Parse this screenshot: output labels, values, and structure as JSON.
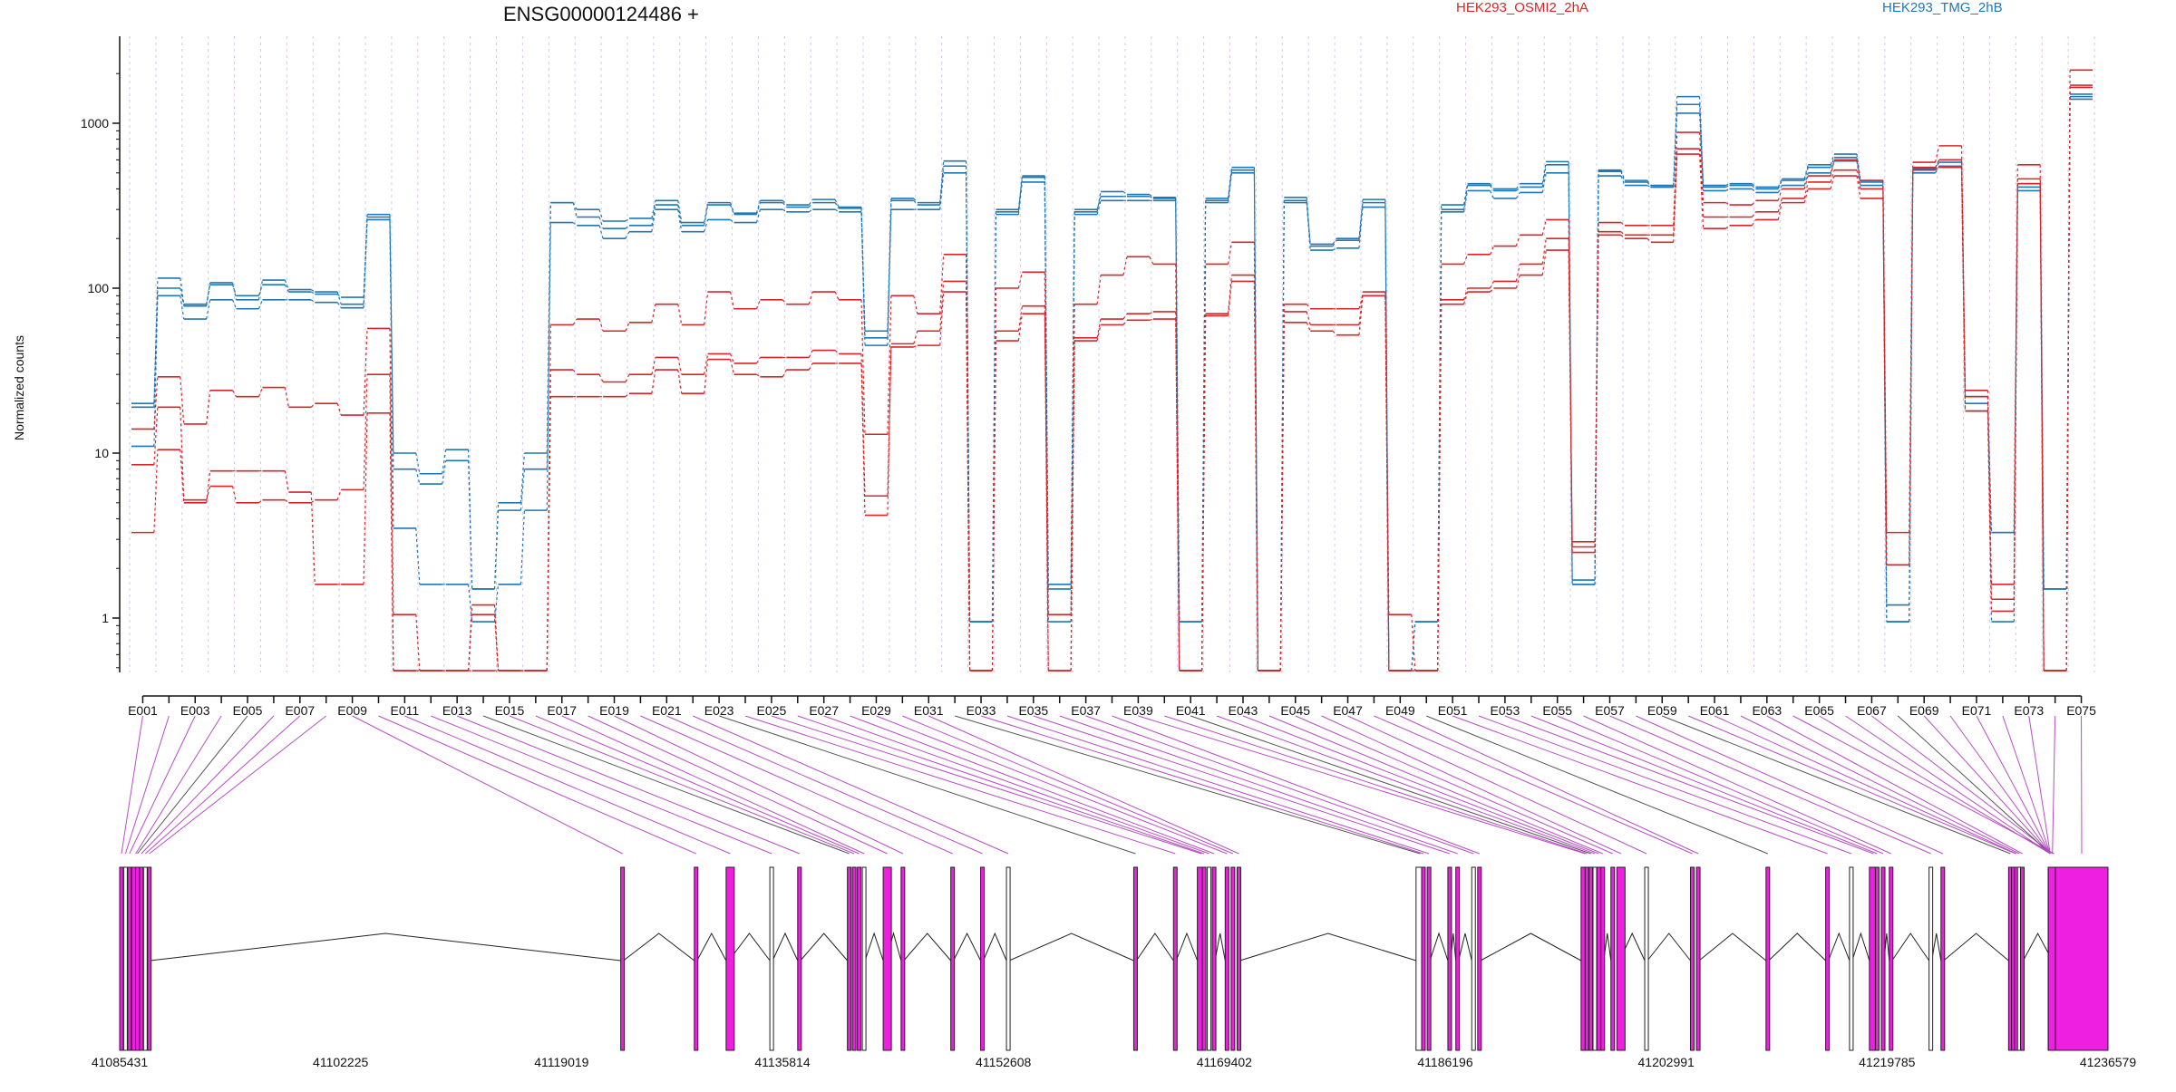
{
  "chart_data": {
    "type": "line",
    "title": "ENSG00000124486 +",
    "ylabel": "Normalized counts",
    "yscale": "log",
    "ylim": [
      0.5,
      2500
    ],
    "yticks": [
      1,
      10,
      100,
      1000
    ],
    "ytick_labels": [
      "1",
      "10",
      "100",
      "1000"
    ],
    "grid": "vertical dashed lines at each exon bin",
    "legend": [
      {
        "name": "HEK293_OSMI2_2hA",
        "color": "#d62728"
      },
      {
        "name": "HEK293_TMG_2hB",
        "color": "#1f77b4"
      }
    ],
    "x_labels": [
      "E001",
      "E003",
      "E005",
      "E007",
      "E009",
      "E011",
      "E013",
      "E015",
      "E017",
      "E019",
      "E021",
      "E023",
      "E025",
      "E027",
      "E029",
      "E031",
      "E033",
      "E035",
      "E037",
      "E039",
      "E041",
      "E043",
      "E045",
      "E047",
      "E049",
      "E051",
      "E053",
      "E055",
      "E057",
      "E059",
      "E061",
      "E063",
      "E065",
      "E067",
      "E069",
      "E071",
      "E073",
      "E075"
    ],
    "series": [
      {
        "group": "HEK293_TMG_2hB",
        "color": "#1f77b4",
        "values": [
          20,
          115,
          80,
          105,
          90,
          105,
          95,
          92,
          88,
          270,
          10,
          7.5,
          10.5,
          1.5,
          5,
          10,
          330,
          300,
          255,
          265,
          340,
          250,
          330,
          285,
          340,
          320,
          345,
          310,
          55,
          350,
          330,
          590,
          0.95,
          290,
          480,
          1.6,
          290,
          385,
          370,
          355,
          0.95,
          350,
          540,
          0.48,
          355,
          180,
          195,
          345,
          0.48,
          0.95,
          320,
          430,
          400,
          430,
          585,
          1.6,
          520,
          450,
          420,
          1450,
          420,
          430,
          410,
          460,
          560,
          650,
          450,
          0.95,
          530,
          600,
          22,
          3.3,
          430,
          1.5,
          1500
        ]
      },
      {
        "group": "HEK293_TMG_2hB",
        "color": "#1f77b4",
        "values": [
          19,
          100,
          78,
          108,
          85,
          112,
          98,
          95,
          80,
          280,
          8,
          6.5,
          9,
          1.5,
          4.5,
          8,
          330,
          270,
          230,
          240,
          320,
          240,
          320,
          280,
          330,
          310,
          330,
          305,
          50,
          340,
          320,
          550,
          0.95,
          300,
          470,
          1.5,
          300,
          360,
          360,
          350,
          0.95,
          340,
          520,
          0.48,
          340,
          185,
          200,
          330,
          0.48,
          0.95,
          300,
          420,
          390,
          410,
          560,
          1.7,
          510,
          440,
          410,
          1300,
          410,
          420,
          400,
          450,
          540,
          620,
          440,
          1.2,
          520,
          580,
          20,
          3.3,
          410,
          1.5,
          1450
        ]
      },
      {
        "group": "HEK293_TMG_2hB",
        "color": "#1f77b4",
        "values": [
          11,
          90,
          65,
          85,
          75,
          85,
          85,
          82,
          76,
          260,
          3.5,
          1.6,
          1.6,
          0.95,
          1.6,
          4.5,
          250,
          240,
          200,
          220,
          300,
          220,
          260,
          250,
          300,
          290,
          300,
          290,
          45,
          300,
          300,
          500,
          0.95,
          280,
          440,
          0.95,
          280,
          340,
          340,
          340,
          0.48,
          330,
          500,
          0.48,
          330,
          170,
          175,
          310,
          0.48,
          0.48,
          290,
          390,
          350,
          380,
          500,
          1.6,
          480,
          420,
          410,
          1150,
          390,
          400,
          380,
          420,
          500,
          590,
          420,
          0.95,
          500,
          550,
          18,
          0.95,
          390,
          0.48,
          1400
        ]
      },
      {
        "group": "HEK293_OSMI2_2hA",
        "color": "#d62728",
        "values": [
          14,
          29,
          15,
          24,
          22,
          25,
          19,
          20,
          17,
          57,
          1.05,
          0.48,
          0.48,
          1.2,
          0.48,
          0.48,
          60,
          65,
          55,
          62,
          80,
          60,
          95,
          75,
          85,
          80,
          95,
          85,
          13,
          90,
          70,
          160,
          0.48,
          100,
          125,
          0.48,
          80,
          120,
          155,
          140,
          0.48,
          140,
          190,
          0.48,
          80,
          75,
          75,
          90,
          1.05,
          0.48,
          140,
          160,
          180,
          210,
          260,
          2.9,
          250,
          240,
          240,
          880,
          330,
          320,
          340,
          400,
          480,
          600,
          450,
          3.3,
          580,
          730,
          24,
          1.6,
          560,
          0.48,
          2100
        ]
      },
      {
        "group": "HEK293_OSMI2_2hA",
        "color": "#d62728",
        "values": [
          8.5,
          19,
          5.2,
          6.3,
          5,
          5.2,
          5,
          5.2,
          6,
          30,
          0.48,
          0.48,
          0.48,
          1.05,
          0.48,
          0.48,
          32,
          30,
          27,
          30,
          38,
          30,
          40,
          35,
          38,
          38,
          42,
          40,
          5.5,
          46,
          55,
          110,
          0.48,
          55,
          78,
          1.05,
          50,
          65,
          70,
          72,
          0.48,
          70,
          120,
          0.48,
          72,
          60,
          60,
          95,
          0.48,
          0.48,
          85,
          100,
          110,
          140,
          200,
          2.7,
          220,
          210,
          210,
          700,
          270,
          270,
          290,
          350,
          440,
          520,
          400,
          2.1,
          540,
          600,
          22,
          1.3,
          460,
          0.48,
          1700
        ]
      },
      {
        "group": "HEK293_OSMI2_2hA",
        "color": "#d62728",
        "values": [
          3.3,
          10.5,
          5,
          7.8,
          7.8,
          7.8,
          5.8,
          1.6,
          1.6,
          17.5,
          0.48,
          0.48,
          0.48,
          0.48,
          0.48,
          0.48,
          22,
          22,
          22,
          23,
          32,
          23,
          37,
          30,
          29,
          32,
          35,
          35,
          4.2,
          44,
          45,
          95,
          0.48,
          48,
          70,
          0.48,
          48,
          60,
          64,
          65,
          0.48,
          68,
          110,
          0.48,
          62,
          55,
          52,
          90,
          0.48,
          0.48,
          80,
          95,
          100,
          120,
          170,
          2.5,
          210,
          200,
          190,
          650,
          230,
          240,
          260,
          330,
          400,
          480,
          350,
          2.1,
          520,
          540,
          18,
          1.1,
          430,
          0.48,
          1650
        ]
      }
    ],
    "gene_model": {
      "coordinate_labels": [
        "41085431",
        "41102225",
        "41119019",
        "41135814",
        "41152608",
        "41169402",
        "41186196",
        "41202991",
        "41219785",
        "41236579"
      ]
    }
  }
}
